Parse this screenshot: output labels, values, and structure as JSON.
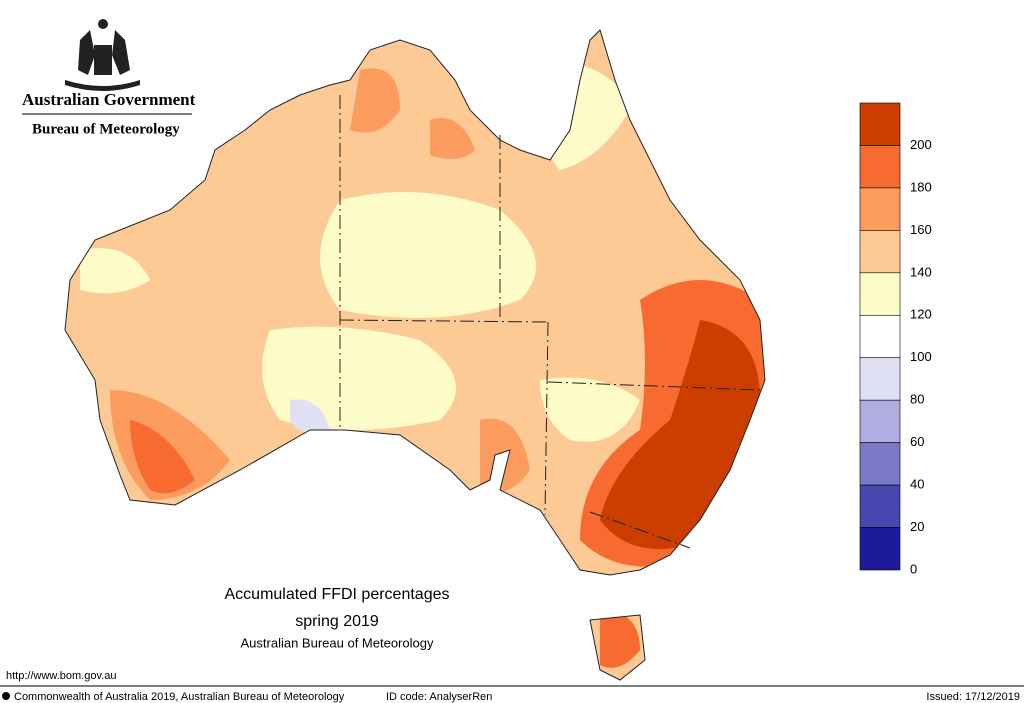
{
  "header": {
    "title": "Australian Government",
    "subtitle": "Bureau of Meteorology"
  },
  "map": {
    "title": "Accumulated FFDI percentages",
    "period": "spring 2019",
    "source": "Australian Bureau of Meteorology"
  },
  "legend": {
    "colors": [
      "#cc3d00",
      "#f76b30",
      "#fc9c5e",
      "#fdc994",
      "#fdfbc8",
      "#ffffff",
      "#e0e0f5",
      "#b0aee0",
      "#7b79c8",
      "#4848b0",
      "#1a1a9a"
    ],
    "labels": [
      200,
      180,
      160,
      140,
      120,
      100,
      80,
      60,
      40,
      20,
      0
    ]
  },
  "footer": {
    "url": "http://www.bom.gov.au",
    "copyright": "Commonwealth of Australia 2019, Australian Bureau of Meteorology",
    "id_code": "ID code: AnalyserRen",
    "issued": "Issued: 17/12/2019"
  }
}
